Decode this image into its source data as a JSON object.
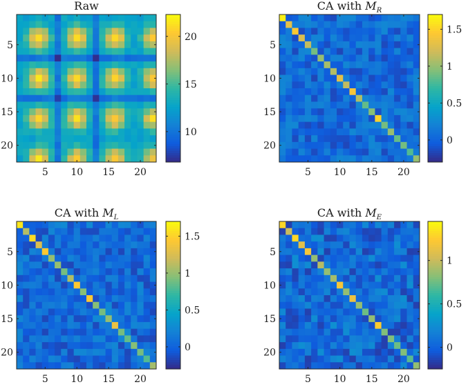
{
  "figure": {
    "colormap": "parula",
    "colormap_stops": [
      "#352a87",
      "#0f5cdd",
      "#1481d6",
      "#06a4ca",
      "#2eb7a4",
      "#87bf77",
      "#d1bb59",
      "#fec832",
      "#f9fb0e"
    ]
  },
  "chart_data": [
    {
      "type": "heatmap",
      "title": "Raw",
      "title_base": "Raw",
      "title_var": "",
      "title_sub": "",
      "size": 22,
      "pattern": "raw",
      "base": 12.5,
      "peak": 22,
      "clim": [
        6.8,
        22.3
      ],
      "xticks": [
        5,
        10,
        15,
        20
      ],
      "yticks": [
        5,
        10,
        15,
        20
      ],
      "colorbar_ticks": [
        10,
        15,
        20
      ]
    },
    {
      "type": "heatmap",
      "title": "CA with M_R",
      "title_base": "CA with ",
      "title_var": "M",
      "title_sub": "R",
      "size": 22,
      "pattern": "diagonal",
      "diag_values": [
        1.65,
        1.3,
        1.45,
        1.25,
        1.15,
        0.9,
        1.0,
        1.05,
        1.1,
        1.3,
        1.15,
        1.4,
        1.1,
        0.85,
        0.95,
        1.5,
        0.9,
        1.0,
        0.85,
        0.9,
        0.8,
        1.0
      ],
      "clim": [
        -0.3,
        1.7
      ],
      "xticks": [
        5,
        10,
        15,
        20
      ],
      "yticks": [
        5,
        10,
        15,
        20
      ],
      "colorbar_ticks": [
        0,
        0.5,
        1,
        1.5
      ]
    },
    {
      "type": "heatmap",
      "title": "CA with M_L",
      "title_base": "CA with ",
      "title_var": "M",
      "title_sub": "L",
      "size": 22,
      "pattern": "diagonal",
      "diag_values": [
        1.6,
        1.1,
        1.55,
        1.25,
        1.45,
        1.0,
        1.0,
        0.9,
        1.1,
        1.45,
        0.95,
        1.45,
        0.95,
        0.9,
        1.0,
        1.35,
        0.9,
        0.85,
        0.95,
        0.9,
        0.8,
        1.05
      ],
      "clim": [
        -0.3,
        1.7
      ],
      "xticks": [
        5,
        10,
        15,
        20
      ],
      "yticks": [
        5,
        10,
        15,
        20
      ],
      "colorbar_ticks": [
        0,
        0.5,
        1,
        1.5
      ]
    },
    {
      "type": "heatmap",
      "title": "CA with M_E",
      "title_base": "CA with ",
      "title_var": "M",
      "title_sub": "E",
      "size": 22,
      "pattern": "diagonal",
      "diag_values": [
        1.3,
        1.0,
        1.3,
        1.1,
        1.2,
        0.85,
        0.95,
        0.85,
        0.9,
        1.2,
        0.85,
        1.15,
        0.85,
        0.75,
        0.85,
        1.25,
        0.8,
        0.8,
        0.75,
        0.8,
        0.7,
        0.85
      ],
      "clim": [
        -0.25,
        1.45
      ],
      "xticks": [
        5,
        10,
        15,
        20
      ],
      "yticks": [
        5,
        10,
        15,
        20
      ],
      "colorbar_ticks": [
        0,
        0.5,
        1
      ]
    }
  ]
}
